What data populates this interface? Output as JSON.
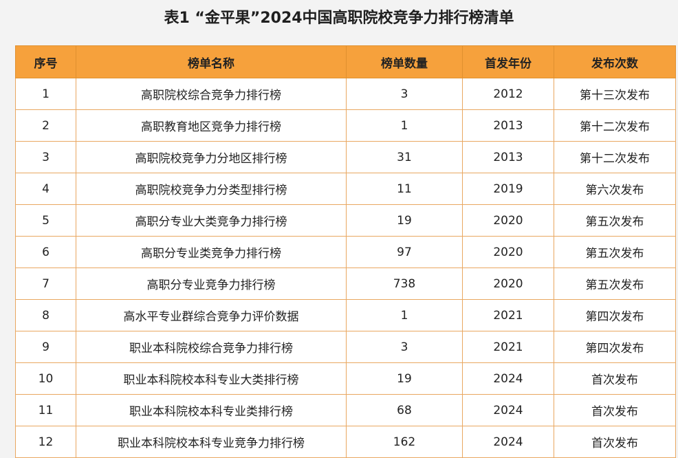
{
  "title": "表1 “金平果”2024中国高职院校竞争力排行榜清单",
  "headers": [
    "序号",
    "榜单名称",
    "榜单数量",
    "首发年份",
    "发布次数"
  ],
  "rows": [
    [
      "1",
      "高职院校综合竞争力排行榜",
      "3",
      "2012",
      "第十三次发布"
    ],
    [
      "2",
      "高职教育地区竞争力排行榜",
      "1",
      "2013",
      "第十二次发布"
    ],
    [
      "3",
      "高职院校竞争力分地区排行榜",
      "31",
      "2013",
      "第十二次发布"
    ],
    [
      "4",
      "高职院校竞争力分类型排行榜",
      "11",
      "2019",
      "第六次发布"
    ],
    [
      "5",
      "高职分专业大类竞争力排行榜",
      "19",
      "2020",
      "第五次发布"
    ],
    [
      "6",
      "高职分专业类竞争力排行榜",
      "97",
      "2020",
      "第五次发布"
    ],
    [
      "7",
      "高职分专业竞争力排行榜",
      "738",
      "2020",
      "第五次发布"
    ],
    [
      "8",
      "高水平专业群综合竞争力评价数据",
      "1",
      "2021",
      "第四次发布"
    ],
    [
      "9",
      "职业本科院校综合竞争力排行榜",
      "3",
      "2021",
      "第四次发布"
    ],
    [
      "10",
      "职业本科院校本科专业大类排行榜",
      "19",
      "2024",
      "首次发布"
    ],
    [
      "11",
      "职业本科院校本科专业类排行榜",
      "68",
      "2024",
      "首次发布"
    ],
    [
      "12",
      "职业本科院校本科专业竞争力排行榜",
      "162",
      "2024",
      "首次发布"
    ]
  ]
}
